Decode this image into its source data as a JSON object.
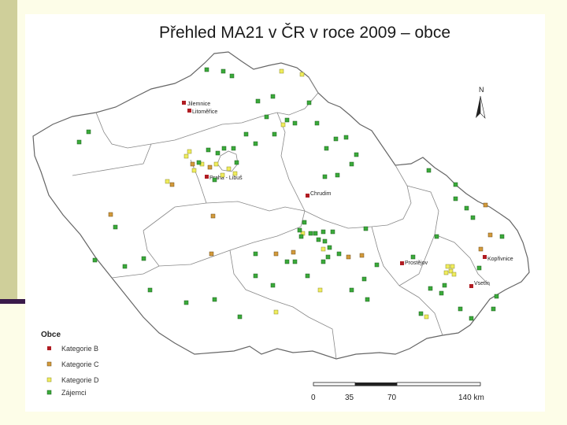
{
  "title": "Přehled MA21 v ČR v roce 2009 – obce",
  "north_label": "N",
  "legend": {
    "title": "Obce",
    "items": [
      {
        "label": "Kategorie B",
        "color": "#b01c22"
      },
      {
        "label": "Kategorie C",
        "color": "#d39a3a"
      },
      {
        "label": "Kategorie D",
        "color": "#f0ec5c"
      },
      {
        "label": "Zájemci",
        "color": "#3aaa3a"
      }
    ]
  },
  "scale_bar": {
    "ticks": [
      "0",
      "35",
      "70",
      "140 km"
    ]
  },
  "place_labels": [
    "Jilemnice",
    "Litoměřice",
    "Praha - Libuš",
    "Chrudim",
    "Prostějov",
    "Kopřivnice",
    "Vsetín"
  ],
  "colors": {
    "border": "#666666",
    "sidebar": "#cfcf9a",
    "sidebar_rule": "#3a1a4a"
  }
}
